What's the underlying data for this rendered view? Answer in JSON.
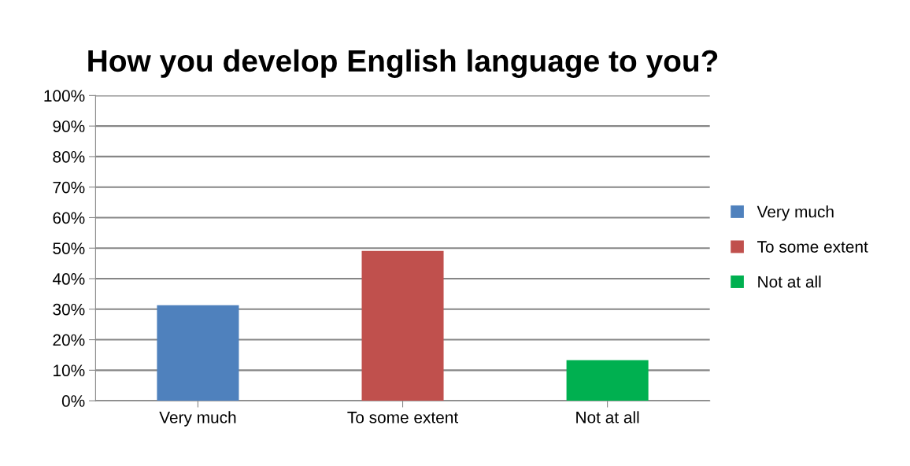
{
  "chart_data": {
    "type": "bar",
    "title": "How you develop English language to you?",
    "categories": [
      "Very much",
      "To some extent",
      "Not at all"
    ],
    "series": [
      {
        "name": "Very much",
        "color": "#4f81bd",
        "values": [
          31.3,
          null,
          null
        ]
      },
      {
        "name": "To some extent",
        "color": "#c0504d",
        "values": [
          null,
          49.1,
          null
        ]
      },
      {
        "name": "Not at all",
        "color": "#00b050",
        "values": [
          null,
          null,
          13.3
        ]
      }
    ],
    "ylim": [
      0,
      100
    ],
    "yticks": [
      {
        "value": 0,
        "label": "0%"
      },
      {
        "value": 10,
        "label": "10%"
      },
      {
        "value": 20,
        "label": "20%"
      },
      {
        "value": 30,
        "label": "30%"
      },
      {
        "value": 40,
        "label": "40%"
      },
      {
        "value": 50,
        "label": "50%"
      },
      {
        "value": 60,
        "label": "60%"
      },
      {
        "value": 70,
        "label": "70%"
      },
      {
        "value": 80,
        "label": "80%"
      },
      {
        "value": 90,
        "label": "90%"
      },
      {
        "value": 100,
        "label": "100%"
      }
    ],
    "grid": "y",
    "legend": "right"
  }
}
